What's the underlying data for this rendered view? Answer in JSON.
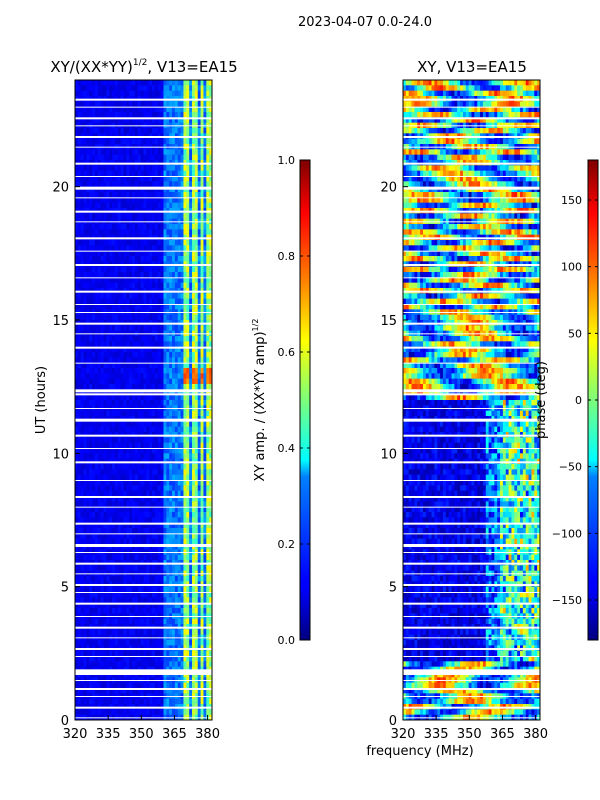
{
  "suptitle": "2023-04-07 0.0-24.0",
  "chart_data": [
    {
      "type": "heatmap",
      "title": "XY/(XX*YY)",
      "title_superscript": "1/2",
      "title_suffix": ", V13=EA15",
      "xlabel": "",
      "ylabel": "UT (hours)",
      "x_ticks": [
        320,
        335,
        350,
        365,
        380
      ],
      "y_ticks": [
        0,
        5,
        10,
        15,
        20
      ],
      "xlim": [
        320,
        382
      ],
      "ylim": [
        0,
        24
      ],
      "colorbar": {
        "label": "XY amp. / (XX*YY amp)",
        "label_superscript": "1/2",
        "range": [
          0.0,
          1.0
        ],
        "tick_labels": [
          "0.0",
          "0.2",
          "0.4",
          "0.6",
          "0.8",
          "1.0"
        ],
        "colormap": "jet"
      },
      "features": "low amplitude (~0.1) below 360 MHz; elevated amplitude (0.3-0.7) in bands between 362 and 382 MHz"
    },
    {
      "type": "heatmap",
      "title": "XY, V13=EA15",
      "xlabel": "frequency (MHz)",
      "ylabel": "",
      "x_ticks": [
        320,
        335,
        350,
        365,
        380
      ],
      "y_ticks": [
        0,
        5,
        10,
        15,
        20
      ],
      "xlim": [
        320,
        382
      ],
      "ylim": [
        0,
        24
      ],
      "colorbar": {
        "label": "phase (deg)",
        "range": [
          -180,
          180
        ],
        "tick_labels": [
          "−150",
          "−100",
          "−50",
          "0",
          "50",
          "100",
          "150"
        ],
        "colormap": "jet"
      },
      "features": "phase near -150 deg from 3 to 12 h; varying -50 to 180 deg after 12 h and below 2 h"
    }
  ]
}
